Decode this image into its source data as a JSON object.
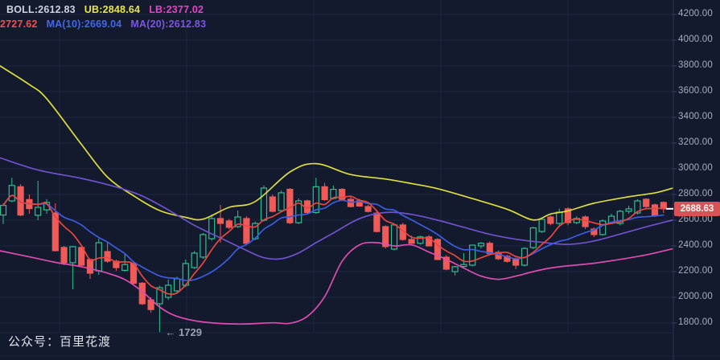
{
  "colors": {
    "bg": "#131a2d",
    "grid": "#1d2542",
    "axis_line": "#2a3354",
    "axis_tick": "#3a4468",
    "axis_text": "#a9aec0",
    "bull": "#2fbf8f",
    "bear": "#ef5b58",
    "ub_line": "#dede3d",
    "lb_line": "#df4cb0",
    "ma5_line": "#ea4640",
    "ma10_line": "#3c5ce0",
    "ma20_line": "#6f52cc",
    "badge_bg": "#d85356",
    "badge_tick": "#ffffff"
  },
  "legend": {
    "row1": [
      {
        "name": "boll",
        "text": "BOLL:2612.83",
        "color": "#ced3e0"
      },
      {
        "name": "ub",
        "text": "UB:2848.64",
        "color": "#e9e93f"
      },
      {
        "name": "lb",
        "text": "LB:2377.02",
        "color": "#e743c4"
      }
    ],
    "row2": [
      {
        "name": "ma5",
        "text": "2727.62",
        "color": "#f2504b"
      },
      {
        "name": "ma10",
        "text": "MA(10):2669.04",
        "color": "#4466e8"
      },
      {
        "name": "ma20",
        "text": "MA(20):2612.83",
        "color": "#7a55e6"
      }
    ]
  },
  "price_badge": {
    "text": "2688.63"
  },
  "watermark": "公众号：百里花渡",
  "annotation": {
    "text": "← 1729"
  },
  "chart_data": {
    "type": "candlestick",
    "title": "",
    "legend_position": "top-left",
    "grid": true,
    "y_axis": {
      "min": 1800,
      "max": 4200,
      "step": 200,
      "ticks": [
        {
          "price": 4200,
          "label": "4200.00"
        },
        {
          "price": 4000,
          "label": "4000.00"
        },
        {
          "price": 3800,
          "label": "3800.00"
        },
        {
          "price": 3600,
          "label": "3600.00"
        },
        {
          "price": 3400,
          "label": "3400.00"
        },
        {
          "price": 3200,
          "label": "3200.00"
        },
        {
          "price": 3000,
          "label": "3000.00"
        },
        {
          "price": 2800,
          "label": "2800.00"
        },
        {
          "price": 2600,
          "label": "2600.00"
        },
        {
          "price": 2400,
          "label": "2400.00"
        },
        {
          "price": 2200,
          "label": "2200.00"
        },
        {
          "price": 2000,
          "label": "2000.00"
        },
        {
          "price": 1800,
          "label": "1800.00"
        }
      ]
    },
    "last_price": 2688.63,
    "low_annotation": {
      "index": 18,
      "price": 1729
    },
    "v_gridlines": [
      74,
      232,
      390,
      548,
      706
    ],
    "candles": [
      [
        2640,
        2730,
        2570,
        2715
      ],
      [
        2750,
        2930,
        2740,
        2870
      ],
      [
        2860,
        2880,
        2630,
        2640
      ],
      [
        2760,
        2800,
        2650,
        2690
      ],
      [
        2638,
        2906,
        2600,
        2700
      ],
      [
        2680,
        2763,
        2650,
        2738
      ],
      [
        2656,
        2731,
        2356,
        2363
      ],
      [
        2388,
        2400,
        2250,
        2269
      ],
      [
        2269,
        2400,
        2063,
        2394
      ],
      [
        2388,
        2394,
        2244,
        2250
      ],
      [
        2294,
        2300,
        2144,
        2188
      ],
      [
        2206,
        2456,
        2175,
        2425
      ],
      [
        2356,
        2425,
        2269,
        2281
      ],
      [
        2281,
        2294,
        2206,
        2231
      ],
      [
        2210,
        2344,
        2200,
        2255
      ],
      [
        2263,
        2270,
        2094,
        2110
      ],
      [
        2110,
        2119,
        1940,
        1950
      ],
      [
        1980,
        2000,
        1880,
        1905
      ],
      [
        1950,
        2090,
        1729,
        2075
      ],
      [
        2000,
        2138,
        1980,
        2094
      ],
      [
        2050,
        2160,
        2030,
        2144
      ],
      [
        2094,
        2294,
        2080,
        2263
      ],
      [
        2231,
        2360,
        2220,
        2344
      ],
      [
        2313,
        2500,
        2300,
        2488
      ],
      [
        2456,
        2644,
        2440,
        2613
      ],
      [
        2613,
        2719,
        2425,
        2575
      ],
      [
        2594,
        2610,
        2530,
        2544
      ],
      [
        2550,
        2675,
        2540,
        2625
      ],
      [
        2613,
        2630,
        2410,
        2420
      ],
      [
        2456,
        2590,
        2445,
        2575
      ],
      [
        2600,
        2870,
        2590,
        2850
      ],
      [
        2781,
        2800,
        2660,
        2669
      ],
      [
        2675,
        2830,
        2665,
        2813
      ],
      [
        2840,
        2850,
        2570,
        2580
      ],
      [
        2580,
        2770,
        2570,
        2750
      ],
      [
        2750,
        2760,
        2650,
        2660
      ],
      [
        2660,
        2930,
        2650,
        2860
      ],
      [
        2860,
        2890,
        2750,
        2760
      ],
      [
        2770,
        2870,
        2760,
        2840
      ],
      [
        2840,
        2850,
        2750,
        2762
      ],
      [
        2762,
        2790,
        2700,
        2706
      ],
      [
        2750,
        2765,
        2705,
        2710
      ],
      [
        2706,
        2720,
        2660,
        2668
      ],
      [
        2655,
        2680,
        2505,
        2512
      ],
      [
        2550,
        2560,
        2380,
        2395
      ],
      [
        2375,
        2570,
        2365,
        2563
      ],
      [
        2563,
        2580,
        2440,
        2450
      ],
      [
        2450,
        2480,
        2415,
        2420
      ],
      [
        2420,
        2480,
        2410,
        2470
      ],
      [
        2470,
        2485,
        2395,
        2400
      ],
      [
        2450,
        2460,
        2290,
        2294
      ],
      [
        2312,
        2330,
        2210,
        2219
      ],
      [
        2200,
        2245,
        2170,
        2238
      ],
      [
        2240,
        2344,
        2230,
        2255
      ],
      [
        2250,
        2410,
        2240,
        2406
      ],
      [
        2400,
        2430,
        2380,
        2420
      ],
      [
        2420,
        2435,
        2330,
        2340
      ],
      [
        2350,
        2365,
        2290,
        2300
      ],
      [
        2320,
        2330,
        2270,
        2280
      ],
      [
        2300,
        2310,
        2220,
        2250
      ],
      [
        2250,
        2390,
        2240,
        2380
      ],
      [
        2387,
        2550,
        2375,
        2540
      ],
      [
        2512,
        2615,
        2500,
        2606
      ],
      [
        2625,
        2638,
        2560,
        2575
      ],
      [
        2575,
        2690,
        2560,
        2663
      ],
      [
        2688,
        2700,
        2560,
        2581
      ],
      [
        2581,
        2631,
        2569,
        2613
      ],
      [
        2625,
        2638,
        2531,
        2550
      ],
      [
        2531,
        2544,
        2469,
        2488
      ],
      [
        2488,
        2606,
        2480,
        2594
      ],
      [
        2581,
        2650,
        2570,
        2631
      ],
      [
        2575,
        2680,
        2560,
        2669
      ],
      [
        2669,
        2713,
        2650,
        2688
      ],
      [
        2656,
        2763,
        2645,
        2750
      ],
      [
        2763,
        2770,
        2695,
        2706
      ],
      [
        2719,
        2730,
        2625,
        2638
      ],
      [
        2738,
        2745,
        2656,
        2688.63
      ]
    ],
    "indicators": {
      "readouts": {
        "boll_mid": 2612.83,
        "ub": 2848.64,
        "lb": 2377.02,
        "ma5": 2727.62,
        "ma10": 2669.04,
        "ma20": 2612.83
      },
      "ma5_window": 5,
      "ma10_window": 10,
      "ub_points": [
        [
          0,
          3800
        ],
        [
          3,
          3655
        ],
        [
          5,
          3545
        ],
        [
          9,
          3190
        ],
        [
          12,
          2935
        ],
        [
          15,
          2790
        ],
        [
          18,
          2675
        ],
        [
          21,
          2622
        ],
        [
          23,
          2608
        ],
        [
          26,
          2700
        ],
        [
          29,
          2745
        ],
        [
          33,
          2975
        ],
        [
          36,
          3040
        ],
        [
          40,
          2955
        ],
        [
          44,
          2920
        ],
        [
          47,
          2885
        ],
        [
          50,
          2845
        ],
        [
          54,
          2768
        ],
        [
          58,
          2685
        ],
        [
          61,
          2602
        ],
        [
          63,
          2648
        ],
        [
          65,
          2672
        ],
        [
          68,
          2732
        ],
        [
          72,
          2782
        ],
        [
          75,
          2812
        ],
        [
          77,
          2848
        ]
      ],
      "lb_points": [
        [
          0,
          2362
        ],
        [
          3,
          2315
        ],
        [
          6,
          2272
        ],
        [
          9,
          2238
        ],
        [
          12,
          2188
        ],
        [
          14,
          2138
        ],
        [
          16,
          2045
        ],
        [
          18,
          1925
        ],
        [
          20,
          1852
        ],
        [
          23,
          1808
        ],
        [
          27,
          1792
        ],
        [
          31,
          1802
        ],
        [
          33,
          1798
        ],
        [
          35,
          1852
        ],
        [
          37,
          2005
        ],
        [
          39,
          2280
        ],
        [
          41,
          2408
        ],
        [
          43,
          2425
        ],
        [
          45,
          2400
        ],
        [
          47,
          2408
        ],
        [
          49,
          2352
        ],
        [
          51,
          2295
        ],
        [
          53,
          2228
        ],
        [
          55,
          2165
        ],
        [
          57,
          2140
        ],
        [
          59,
          2165
        ],
        [
          61,
          2200
        ],
        [
          63,
          2228
        ],
        [
          65,
          2245
        ],
        [
          68,
          2265
        ],
        [
          71,
          2295
        ],
        [
          74,
          2330
        ],
        [
          77,
          2377
        ]
      ],
      "ma20_points": [
        [
          0,
          3085
        ],
        [
          4,
          2990
        ],
        [
          9,
          2925
        ],
        [
          13,
          2858
        ],
        [
          16,
          2788
        ],
        [
          19,
          2680
        ],
        [
          22,
          2560
        ],
        [
          25,
          2462
        ],
        [
          28,
          2365
        ],
        [
          30,
          2308
        ],
        [
          32,
          2300
        ],
        [
          34,
          2345
        ],
        [
          36,
          2425
        ],
        [
          38,
          2500
        ],
        [
          41,
          2612
        ],
        [
          44,
          2660
        ],
        [
          47,
          2645
        ],
        [
          50,
          2600
        ],
        [
          53,
          2545
        ],
        [
          56,
          2490
        ],
        [
          59,
          2452
        ],
        [
          62,
          2428
        ],
        [
          65,
          2412
        ],
        [
          68,
          2438
        ],
        [
          71,
          2492
        ],
        [
          74,
          2548
        ],
        [
          77,
          2600
        ]
      ]
    }
  }
}
